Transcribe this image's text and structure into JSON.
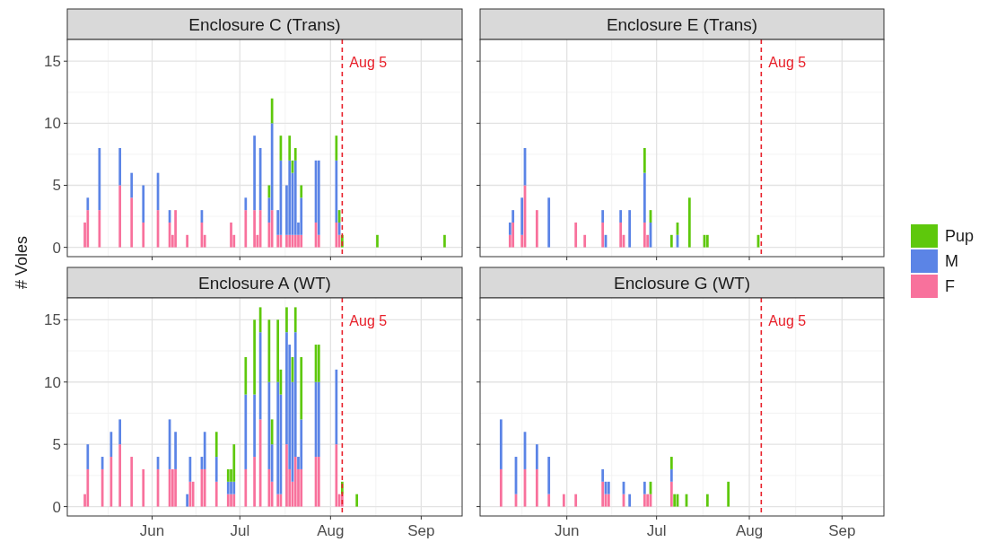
{
  "chart_data": [
    {
      "type": "bar",
      "stacked": true,
      "title": "Enclosure C (Trans)",
      "ylabel": "# Voles",
      "grid": true,
      "tick_labels": "y",
      "xlim": [
        "--05-03",
        "--09-15"
      ],
      "ylim": [
        -0.75,
        16.75
      ],
      "yticks": [
        0,
        5,
        10,
        15
      ],
      "xticks": [
        {
          "value": "--06-01",
          "label": null
        },
        {
          "value": "--07-01",
          "label": null
        },
        {
          "value": "--08-01",
          "label": null
        },
        {
          "value": "--09-01",
          "label": null
        }
      ],
      "ref_lines": [
        {
          "axis": "x",
          "value": "--08-05",
          "label": "Aug 5",
          "color": "#e8202a",
          "line_style": "dashed"
        }
      ],
      "x": [
        "--05-09",
        "--05-10",
        "--05-14",
        "--05-21",
        "--05-25",
        "--05-29",
        "--06-03",
        "--06-07",
        "--06-08",
        "--06-09",
        "--06-13",
        "--06-18",
        "--06-19",
        "--06-28",
        "--06-29",
        "--07-03",
        "--07-06",
        "--07-07",
        "--07-08",
        "--07-11",
        "--07-12",
        "--07-14",
        "--07-15",
        "--07-17",
        "--07-18",
        "--07-19",
        "--07-20",
        "--07-21",
        "--07-22",
        "--07-27",
        "--07-28",
        "--08-03",
        "--08-04",
        "--08-05",
        "--08-17",
        "--09-09"
      ],
      "series": [
        {
          "color": "#f8719c",
          "values": [
            2,
            3,
            3,
            5,
            4,
            2,
            3,
            2,
            1,
            3,
            1,
            2,
            1,
            2,
            1,
            3,
            3,
            1,
            3,
            2,
            3,
            1,
            1,
            1,
            1,
            1,
            1,
            1,
            1,
            2,
            1,
            2,
            1,
            null,
            null,
            null
          ]
        },
        {
          "color": "#5b84e6",
          "values": [
            null,
            1,
            5,
            3,
            2,
            3,
            3,
            1,
            null,
            null,
            null,
            1,
            null,
            null,
            null,
            1,
            6,
            null,
            5,
            2,
            7,
            2,
            6,
            4,
            6,
            5,
            6,
            1,
            3,
            5,
            6,
            5,
            1,
            null,
            null,
            null
          ]
        },
        {
          "color": "#5ec80c",
          "values": [
            null,
            null,
            null,
            null,
            null,
            null,
            null,
            null,
            null,
            null,
            null,
            null,
            null,
            null,
            null,
            null,
            null,
            null,
            null,
            1,
            2,
            null,
            2,
            null,
            2,
            1,
            1,
            null,
            1,
            null,
            null,
            2,
            1,
            1,
            1,
            1
          ]
        }
      ]
    },
    {
      "type": "bar",
      "stacked": true,
      "title": "Enclosure E (Trans)",
      "grid": true,
      "tick_labels": false,
      "legend": "right",
      "xlim": [
        "--05-03",
        "--09-15"
      ],
      "ylim": [
        -0.75,
        16.75
      ],
      "yticks": [
        {
          "value": 0,
          "label": null
        },
        {
          "value": 5,
          "label": null
        },
        {
          "value": 10,
          "label": null
        },
        {
          "value": 15,
          "label": null
        }
      ],
      "xticks": [
        {
          "value": "--06-01",
          "label": null
        },
        {
          "value": "--07-01",
          "label": null
        },
        {
          "value": "--08-01",
          "label": null
        },
        {
          "value": "--09-01",
          "label": null
        }
      ],
      "ref_lines": [
        {
          "axis": "x",
          "value": "--08-05",
          "label": "Aug 5",
          "color": "#e8202a",
          "line_style": "dashed"
        }
      ],
      "x": [
        "--05-13",
        "--05-14",
        "--05-17",
        "--05-18",
        "--05-22",
        "--05-26",
        "--06-04",
        "--06-07",
        "--06-13",
        "--06-14",
        "--06-19",
        "--06-20",
        "--06-22",
        "--06-27",
        "--06-28",
        "--06-29",
        "--07-06",
        "--07-08",
        "--07-12",
        "--07-17",
        "--07-18",
        "--08-04"
      ],
      "series": [
        {
          "name": "F",
          "color": "#f8719c",
          "values": [
            1,
            2,
            1,
            5,
            3,
            null,
            2,
            1,
            2,
            null,
            2,
            1,
            null,
            2,
            1,
            null,
            null,
            null,
            null,
            null,
            null,
            null
          ]
        },
        {
          "name": "M",
          "color": "#5b84e6",
          "values": [
            1,
            1,
            3,
            3,
            null,
            4,
            null,
            null,
            1,
            1,
            1,
            null,
            3,
            4,
            null,
            2,
            null,
            1,
            null,
            null,
            null,
            null
          ]
        },
        {
          "name": "Pup",
          "color": "#5ec80c",
          "values": [
            null,
            null,
            null,
            null,
            null,
            null,
            null,
            null,
            null,
            null,
            null,
            null,
            null,
            2,
            null,
            1,
            1,
            1,
            4,
            1,
            1,
            1
          ]
        }
      ]
    },
    {
      "type": "bar",
      "stacked": true,
      "title": "Enclosure A (WT)",
      "grid": true,
      "xlim": [
        "--05-03",
        "--09-15"
      ],
      "ylim": [
        -0.75,
        16.75
      ],
      "yticks": [
        0,
        5,
        10,
        15
      ],
      "xticks": [
        {
          "value": "--06-01",
          "label": "Jun"
        },
        {
          "value": "--07-01",
          "label": "Jul"
        },
        {
          "value": "--08-01",
          "label": "Aug"
        },
        {
          "value": "--09-01",
          "label": "Sep"
        }
      ],
      "ref_lines": [
        {
          "axis": "x",
          "value": "--08-05",
          "label": "Aug 5",
          "color": "#e8202a",
          "line_style": "dashed"
        }
      ],
      "x": [
        "--05-09",
        "--05-10",
        "--05-15",
        "--05-18",
        "--05-21",
        "--05-25",
        "--05-29",
        "--06-03",
        "--06-07",
        "--06-08",
        "--06-09",
        "--06-13",
        "--06-14",
        "--06-15",
        "--06-18",
        "--06-19",
        "--06-23",
        "--06-27",
        "--06-28",
        "--06-29",
        "--07-03",
        "--07-06",
        "--07-08",
        "--07-11",
        "--07-12",
        "--07-14",
        "--07-15",
        "--07-17",
        "--07-18",
        "--07-19",
        "--07-20",
        "--07-21",
        "--07-22",
        "--07-27",
        "--07-28",
        "--08-03",
        "--08-04",
        "--08-05",
        "--08-10"
      ],
      "series": [
        {
          "color": "#f8719c",
          "values": [
            1,
            3,
            3,
            4,
            5,
            4,
            3,
            3,
            3,
            3,
            3,
            null,
            2,
            2,
            3,
            3,
            2,
            1,
            1,
            1,
            3,
            4,
            7,
            3,
            2,
            1,
            1,
            5,
            3,
            2,
            4,
            3,
            3,
            4,
            4,
            5,
            1,
            1,
            null
          ]
        },
        {
          "color": "#5b84e6",
          "values": [
            null,
            2,
            1,
            2,
            2,
            null,
            null,
            1,
            4,
            null,
            3,
            1,
            2,
            null,
            1,
            3,
            2,
            1,
            1,
            1,
            6,
            5,
            7,
            7,
            3,
            9,
            8,
            9,
            10,
            8,
            10,
            1,
            4,
            6,
            6,
            6,
            null,
            null,
            null
          ]
        },
        {
          "color": "#5ec80c",
          "values": [
            null,
            null,
            null,
            null,
            null,
            null,
            null,
            null,
            null,
            null,
            null,
            null,
            null,
            null,
            null,
            null,
            2,
            1,
            1,
            3,
            3,
            6,
            2,
            5,
            2,
            5,
            2,
            2,
            null,
            2,
            2,
            null,
            5,
            3,
            3,
            null,
            null,
            1,
            1
          ]
        }
      ]
    },
    {
      "type": "bar",
      "stacked": true,
      "title": "Enclosure G (WT)",
      "grid": true,
      "tick_labels": "x",
      "xlim": [
        "--05-03",
        "--09-15"
      ],
      "ylim": [
        -0.75,
        16.75
      ],
      "yticks": [
        {
          "value": 0,
          "label": null
        },
        {
          "value": 5,
          "label": null
        },
        {
          "value": 10,
          "label": null
        },
        {
          "value": 15,
          "label": null
        }
      ],
      "xticks": [
        {
          "value": "--06-01",
          "label": "Jun"
        },
        {
          "value": "--07-01",
          "label": "Jul"
        },
        {
          "value": "--08-01",
          "label": "Aug"
        },
        {
          "value": "--09-01",
          "label": "Sep"
        }
      ],
      "ref_lines": [
        {
          "axis": "x",
          "value": "--08-05",
          "label": "Aug 5",
          "color": "#e8202a",
          "line_style": "dashed"
        }
      ],
      "x": [
        "--05-10",
        "--05-15",
        "--05-18",
        "--05-22",
        "--05-26",
        "--05-31",
        "--06-04",
        "--06-13",
        "--06-14",
        "--06-15",
        "--06-20",
        "--06-22",
        "--06-27",
        "--06-28",
        "--06-29",
        "--07-06",
        "--07-07",
        "--07-08",
        "--07-11",
        "--07-18",
        "--07-25"
      ],
      "series": [
        {
          "color": "#f8719c",
          "values": [
            3,
            1,
            3,
            3,
            1,
            1,
            1,
            2,
            1,
            1,
            1,
            null,
            1,
            1,
            1,
            2,
            null,
            null,
            null,
            null,
            null
          ]
        },
        {
          "color": "#5b84e6",
          "values": [
            4,
            3,
            3,
            2,
            3,
            null,
            null,
            1,
            1,
            1,
            1,
            1,
            1,
            null,
            null,
            1,
            null,
            null,
            null,
            null,
            null
          ]
        },
        {
          "color": "#5ec80c",
          "values": [
            null,
            null,
            null,
            null,
            null,
            null,
            null,
            null,
            null,
            null,
            null,
            null,
            null,
            null,
            1,
            1,
            1,
            1,
            1,
            1,
            2
          ]
        }
      ]
    }
  ]
}
